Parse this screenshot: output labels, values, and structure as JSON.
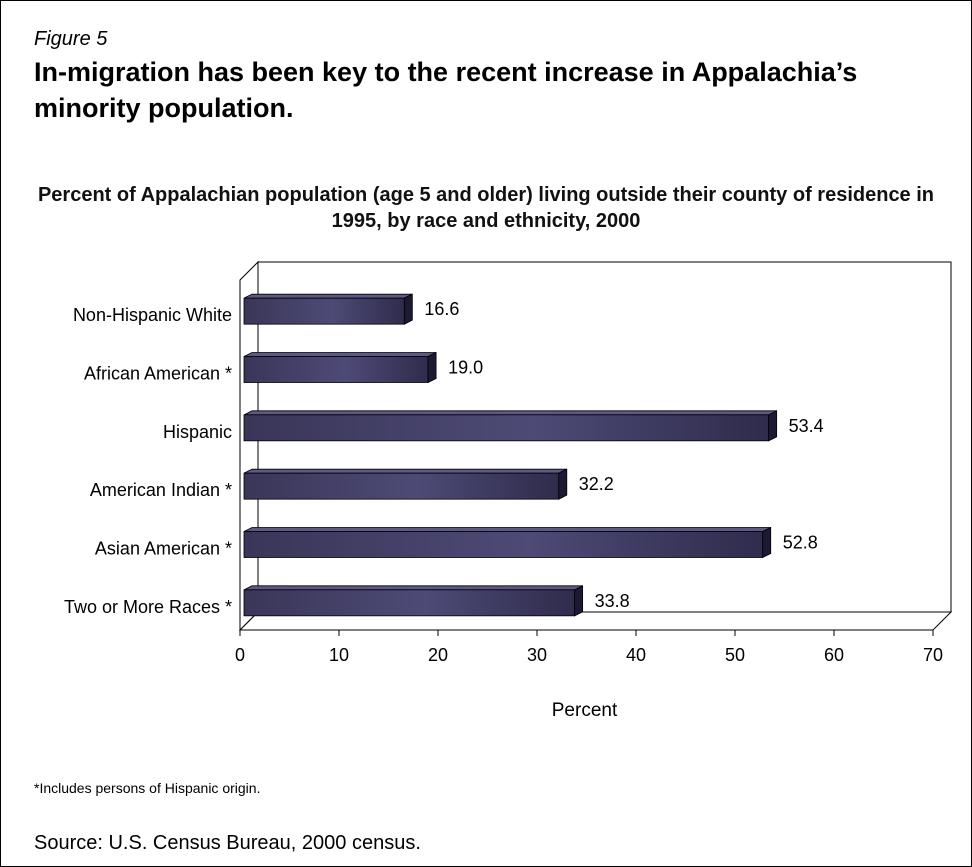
{
  "figure": {
    "label": "Figure 5",
    "headline": "In-migration has been key to the recent increase in Appalachia’s minority population.",
    "footnote": "*Includes persons of Hispanic origin.",
    "source": "Source: U.S. Census Bureau, 2000 census."
  },
  "chart_data": {
    "type": "bar",
    "orientation": "horizontal",
    "title": "Percent of Appalachian population (age 5 and older) living outside their county of residence in 1995, by race and ethnicity, 2000",
    "categories": [
      "Non-Hispanic White",
      "African American *",
      "Hispanic",
      "American Indian *",
      "Asian American *",
      "Two or More Races *"
    ],
    "values": [
      16.6,
      19.0,
      53.4,
      32.2,
      52.8,
      33.8
    ],
    "value_labels": [
      "16.6",
      "19.0",
      "53.4",
      "32.2",
      "52.8",
      "33.8"
    ],
    "xlabel": "Percent",
    "xlim": [
      0,
      70
    ],
    "xticks": [
      "0",
      "10",
      "20",
      "30",
      "40",
      "50",
      "60",
      "70"
    ],
    "grid": false,
    "style": "3d",
    "colors": {
      "bar": "#3b3660",
      "bar_top": "#5c5888",
      "bar_side": "#1c1a33"
    }
  }
}
